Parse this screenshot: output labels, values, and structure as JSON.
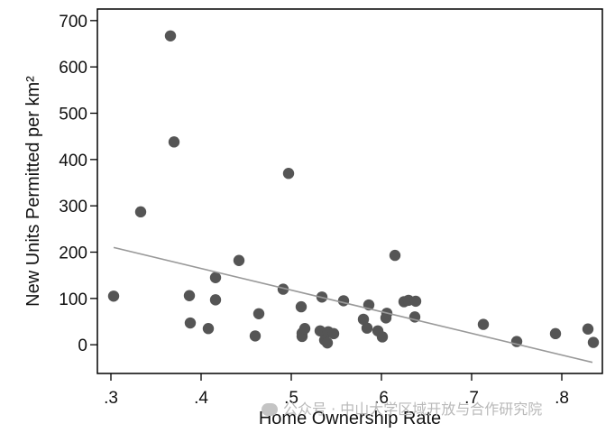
{
  "chart_data": {
    "type": "scatter",
    "xlabel": "Home Ownership Rate",
    "ylabel": "New Units Permitted per km²",
    "xlim": [
      0.285,
      0.845
    ],
    "ylim": [
      -62,
      725
    ],
    "x_ticks": [
      0.3,
      0.4,
      0.5,
      0.6,
      0.7,
      0.8
    ],
    "x_tick_labels": [
      ".3",
      ".4",
      ".5",
      ".6",
      ".7",
      ".8"
    ],
    "y_ticks": [
      0,
      100,
      200,
      300,
      400,
      500,
      600,
      700
    ],
    "y_tick_labels": [
      "0",
      "100",
      "200",
      "300",
      "400",
      "500",
      "600",
      "700"
    ],
    "grid": false,
    "legend": "none",
    "point_color": "#555555",
    "line_color": "#999999",
    "fit_line": {
      "x": [
        0.303,
        0.834
      ],
      "y": [
        210,
        -38
      ]
    },
    "points": [
      {
        "x": 0.303,
        "y": 105
      },
      {
        "x": 0.333,
        "y": 287
      },
      {
        "x": 0.366,
        "y": 667
      },
      {
        "x": 0.37,
        "y": 438
      },
      {
        "x": 0.387,
        "y": 106
      },
      {
        "x": 0.388,
        "y": 47
      },
      {
        "x": 0.408,
        "y": 35
      },
      {
        "x": 0.416,
        "y": 145
      },
      {
        "x": 0.416,
        "y": 97
      },
      {
        "x": 0.442,
        "y": 182
      },
      {
        "x": 0.46,
        "y": 19
      },
      {
        "x": 0.464,
        "y": 67
      },
      {
        "x": 0.491,
        "y": 120
      },
      {
        "x": 0.497,
        "y": 370
      },
      {
        "x": 0.511,
        "y": 82
      },
      {
        "x": 0.512,
        "y": 18
      },
      {
        "x": 0.512,
        "y": 25
      },
      {
        "x": 0.515,
        "y": 35
      },
      {
        "x": 0.532,
        "y": 30
      },
      {
        "x": 0.534,
        "y": 103
      },
      {
        "x": 0.537,
        "y": 10
      },
      {
        "x": 0.54,
        "y": 4
      },
      {
        "x": 0.541,
        "y": 28
      },
      {
        "x": 0.547,
        "y": 24
      },
      {
        "x": 0.558,
        "y": 95
      },
      {
        "x": 0.58,
        "y": 55
      },
      {
        "x": 0.584,
        "y": 36
      },
      {
        "x": 0.586,
        "y": 86
      },
      {
        "x": 0.596,
        "y": 30
      },
      {
        "x": 0.601,
        "y": 17
      },
      {
        "x": 0.605,
        "y": 58
      },
      {
        "x": 0.606,
        "y": 68
      },
      {
        "x": 0.615,
        "y": 193
      },
      {
        "x": 0.625,
        "y": 93
      },
      {
        "x": 0.63,
        "y": 96
      },
      {
        "x": 0.637,
        "y": 60
      },
      {
        "x": 0.638,
        "y": 94
      },
      {
        "x": 0.713,
        "y": 44
      },
      {
        "x": 0.75,
        "y": 7
      },
      {
        "x": 0.793,
        "y": 24
      },
      {
        "x": 0.829,
        "y": 34
      },
      {
        "x": 0.835,
        "y": 5
      }
    ]
  },
  "watermark": {
    "text": "公众号 · 中山大学区域开放与合作研究院",
    "icon": "wechat-icon"
  }
}
